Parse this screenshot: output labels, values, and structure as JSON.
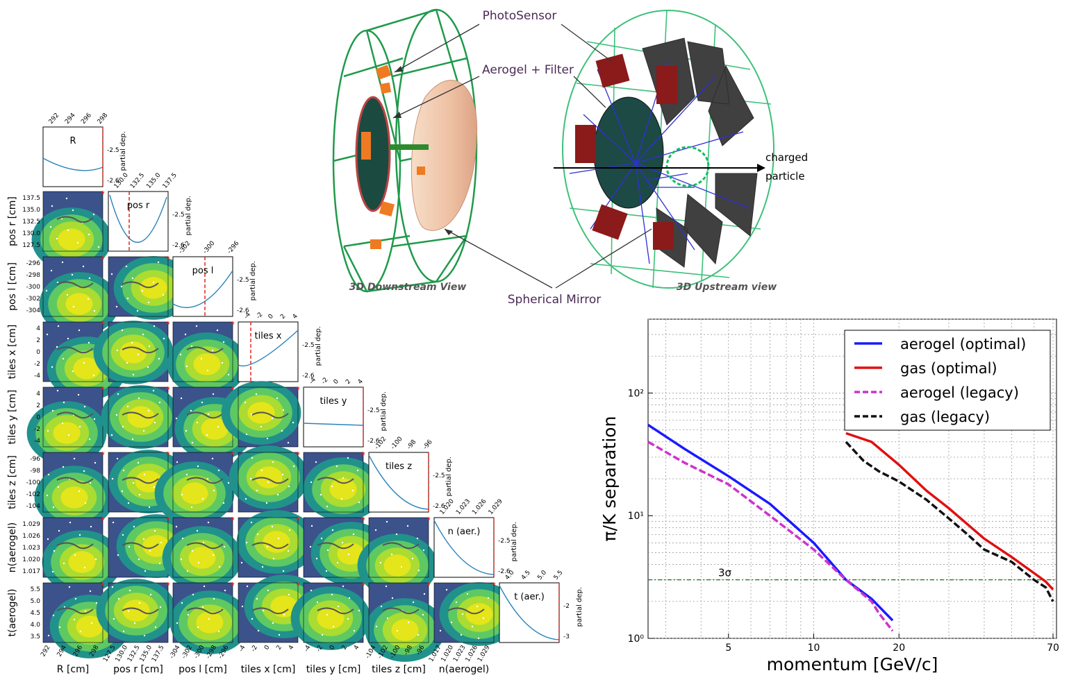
{
  "corner": {
    "diag_titles": [
      "R",
      "pos r",
      "pos l",
      "tiles x",
      "tiles y",
      "tiles z",
      "n (aer.)",
      "t (aer.)"
    ],
    "partial_label": "partial dep.",
    "row_labels": [
      "pos r [cm]",
      "pos l [cm]",
      "tiles x [cm]",
      "tiles y [cm]",
      "tiles z [cm]",
      "n(aerogel)",
      "t(aerogel)"
    ],
    "col_labels": [
      "R [cm]",
      "pos r [cm]",
      "pos l [cm]",
      "tiles x [cm]",
      "tiles y [cm]",
      "tiles z [cm]",
      "n(aerogel)"
    ],
    "top_ticks": [
      [
        "292",
        "294",
        "296",
        "298"
      ],
      [
        "130.0",
        "132.5",
        "135.0",
        "137.5"
      ],
      [
        "-302",
        "-300",
        "-296"
      ],
      [
        "-4",
        "-2",
        "0",
        "2",
        "4"
      ],
      [
        "-4",
        "-2",
        "0",
        "2",
        "4"
      ],
      [
        "-102",
        "-100",
        "-98",
        "-96"
      ],
      [
        "1.020",
        "1.023",
        "1.026",
        "1.029"
      ],
      [
        "4.0",
        "4.5",
        "5.0",
        "5.5"
      ]
    ],
    "diag_right_ticks": [
      [
        "-2.5",
        "-2.6"
      ],
      [
        "-2.5",
        "-2.6"
      ],
      [
        "-2.5",
        "-2.6"
      ],
      [
        "-2.5",
        "-2.6"
      ],
      [
        "-2.5",
        "-2.6"
      ],
      [
        "-2.5",
        "-2.6"
      ],
      [
        "-2.5",
        "-2.6"
      ],
      [
        "-2",
        "-3"
      ]
    ],
    "row_ticks": [
      [
        "137.5",
        "135.0",
        "132.5",
        "130.0",
        "127.5"
      ],
      [
        "-296",
        "-298",
        "-300",
        "-302",
        "-304"
      ],
      [
        "4",
        "2",
        "0",
        "-2",
        "-4"
      ],
      [
        "4",
        "2",
        "0",
        "-2",
        "-4"
      ],
      [
        "-96",
        "-98",
        "-100",
        "-102",
        "-104"
      ],
      [
        "1.029",
        "1.026",
        "1.023",
        "1.020",
        "1.017"
      ],
      [
        "5.5",
        "5.0",
        "4.5",
        "4.0",
        "3.5"
      ]
    ],
    "bottom_ticks": [
      [
        "292",
        "294",
        "296",
        "298"
      ],
      [
        "127.5",
        "130.0",
        "132.5",
        "135.0",
        "137.5"
      ],
      [
        "-304",
        "-302",
        "-300",
        "-298",
        "-296"
      ],
      [
        "-4",
        "-2",
        "0",
        "2",
        "4"
      ],
      [
        "-4",
        "-2",
        "0",
        "2",
        "4"
      ],
      [
        "-104",
        "-102",
        "-100",
        "-98",
        "-96"
      ],
      [
        "1.017",
        "1.020",
        "1.023",
        "1.026",
        "1.029"
      ]
    ]
  },
  "detector": {
    "photosensor": "PhotoSensor",
    "aerogel_filter": "Aerogel + Filter",
    "spherical_mirror": "Spherical Mirror",
    "downstream_view": "3D Downstream View",
    "upstream_view": "3D Upstream view",
    "charged": "charged",
    "particle": "particle"
  },
  "chart_data": {
    "type": "line",
    "xlabel": "momentum [GeV/c]",
    "ylabel": "π/K separation",
    "x_scale": "log",
    "y_scale": "log",
    "xlim": [
      2.6,
      72
    ],
    "ylim": [
      1,
      400
    ],
    "x_ticks": [
      "5",
      "10",
      "20",
      "70"
    ],
    "y_ticks": [
      "10⁰",
      "10¹",
      "10²"
    ],
    "grid": true,
    "legend_position": "top-right",
    "threshold": {
      "value": 3,
      "label": "3σ",
      "color": "#1b6e1b"
    },
    "series": [
      {
        "name": "aerogel (optimal)",
        "color": "#1a1aff",
        "dash": false,
        "x": [
          2.6,
          3.5,
          5,
          7,
          10,
          13,
          16,
          19
        ],
        "y": [
          55,
          35,
          21,
          12.5,
          6,
          3,
          2.1,
          1.4
        ]
      },
      {
        "name": "gas (optimal)",
        "color": "#e01010",
        "dash": false,
        "x": [
          13,
          16,
          20,
          25,
          30,
          40,
          50,
          60,
          66,
          70
        ],
        "y": [
          47,
          40,
          26,
          16,
          11.5,
          6.5,
          4.6,
          3.4,
          2.9,
          2.5
        ]
      },
      {
        "name": "aerogel (legacy)",
        "color": "#cc33cc",
        "dash": true,
        "x": [
          2.6,
          3.5,
          5,
          7,
          10,
          13,
          16,
          17,
          19
        ],
        "y": [
          40,
          27,
          18,
          10,
          5.3,
          3.0,
          2.0,
          1.6,
          1.15
        ]
      },
      {
        "name": "gas (legacy)",
        "color": "#111111",
        "dash": true,
        "x": [
          13,
          15,
          17,
          20,
          25,
          30,
          35,
          40,
          50,
          60,
          66,
          70
        ],
        "y": [
          40,
          28,
          23,
          19,
          13.5,
          9.5,
          7,
          5.3,
          4.2,
          3.0,
          2.6,
          2.0
        ]
      }
    ]
  }
}
